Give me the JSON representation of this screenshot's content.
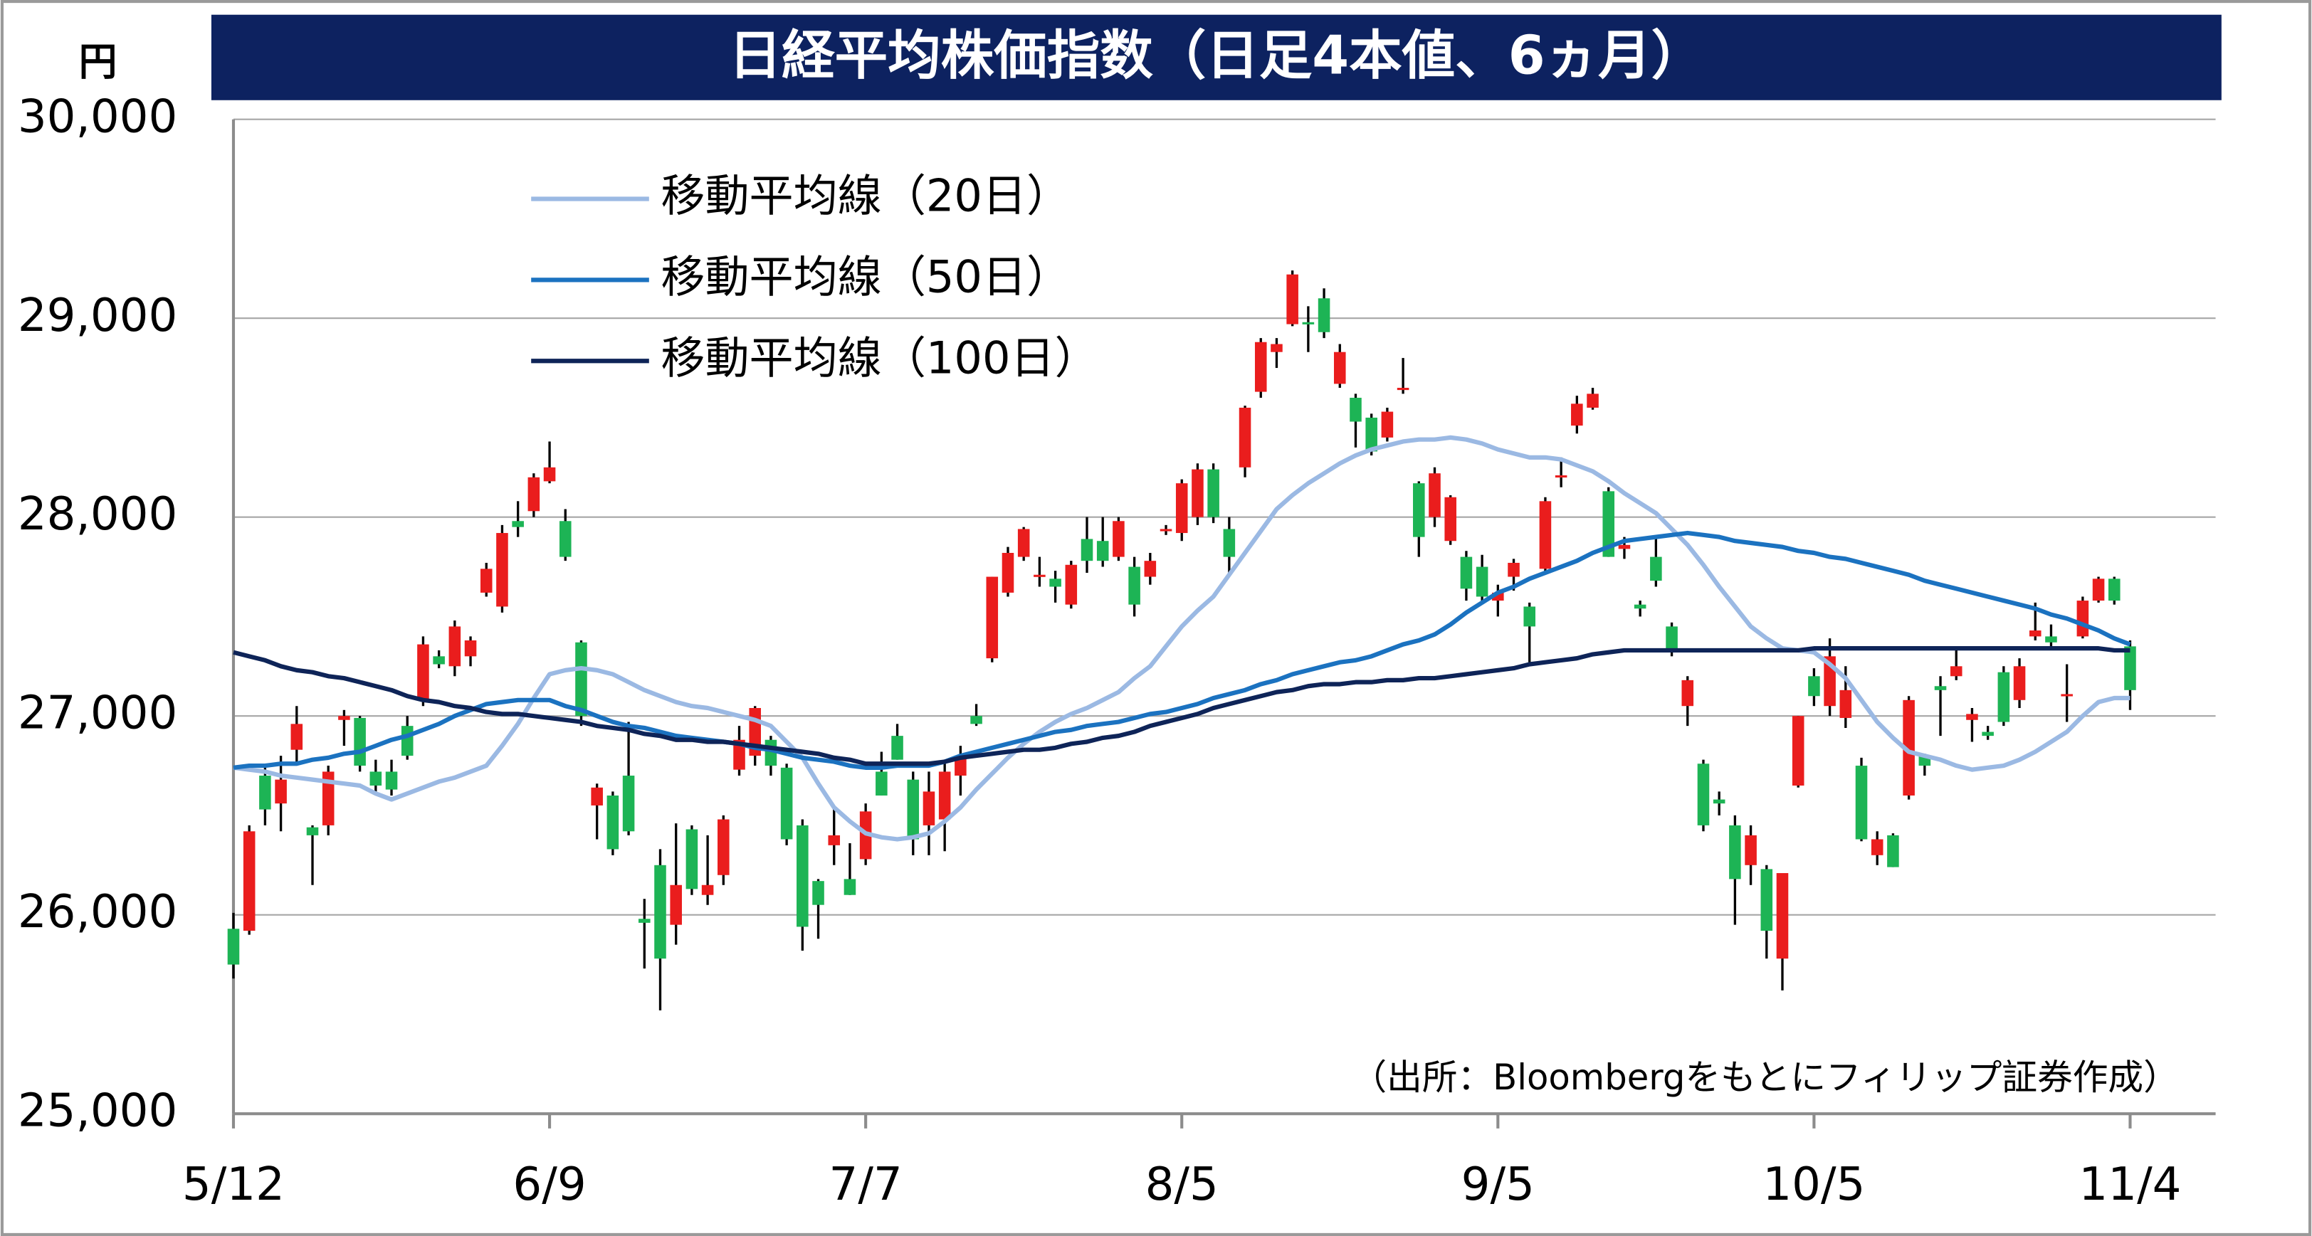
{
  "chart_data": {
    "type": "candlestick",
    "title": "日経平均株価指数（日足4本値、6ヵ月）",
    "y_unit": "円",
    "note": "（出所：Bloombergをもとにフィリップ証券作成）",
    "categories": [
      "5/12",
      null,
      null,
      null,
      null,
      null,
      null,
      null,
      null,
      null,
      null,
      null,
      null,
      null,
      null,
      null,
      null,
      null,
      null,
      null,
      "6/9",
      null,
      null,
      null,
      null,
      null,
      null,
      null,
      null,
      null,
      null,
      null,
      null,
      null,
      null,
      null,
      null,
      null,
      null,
      null,
      "7/7",
      null,
      null,
      null,
      null,
      null,
      null,
      null,
      null,
      null,
      null,
      null,
      null,
      null,
      null,
      null,
      null,
      null,
      null,
      null,
      "8/5",
      null,
      null,
      null,
      null,
      null,
      null,
      null,
      null,
      null,
      null,
      null,
      null,
      null,
      null,
      null,
      null,
      null,
      null,
      null,
      "9/5",
      null,
      null,
      null,
      null,
      null,
      null,
      null,
      null,
      null,
      null,
      null,
      null,
      null,
      null,
      null,
      null,
      null,
      null,
      null,
      "10/5",
      null,
      null,
      null,
      null,
      null,
      null,
      null,
      null,
      null,
      null,
      null,
      null,
      null,
      null,
      null,
      null,
      null,
      null,
      null,
      "11/4"
    ],
    "open": [
      25930,
      25920,
      26700,
      26560,
      26830,
      26440,
      26450,
      26980,
      26990,
      26720,
      26720,
      26950,
      27080,
      27300,
      27250,
      27300,
      27620,
      27550,
      27980,
      28030,
      28180,
      27980,
      27370,
      26550,
      26600,
      26700,
      25980,
      26250,
      25950,
      26430,
      26100,
      26200,
      26730,
      26800,
      26880,
      26740,
      26450,
      26170,
      26350,
      26180,
      26280,
      26720,
      26900,
      26680,
      26450,
      26480,
      26700,
      27000,
      27290,
      27620,
      27800,
      27700,
      27690,
      27560,
      27890,
      27880,
      27800,
      27750,
      27700,
      27930,
      27920,
      28000,
      28240,
      27940,
      28250,
      28630,
      28830,
      28970,
      28980,
      29100,
      28670,
      28600,
      28500,
      28400,
      28640,
      28170,
      28000,
      27880,
      27800,
      27750,
      27580,
      27700,
      27550,
      27740,
      28200,
      28460,
      28550,
      28130,
      27840,
      27560,
      27800,
      27450,
      27050,
      26760,
      26580,
      26450,
      26250,
      26230,
      25780,
      26650,
      27200,
      27050,
      26990,
      26750,
      26300,
      26400,
      26600,
      26800,
      27150,
      27200,
      26980,
      26920,
      27220,
      27080,
      27400,
      27400,
      27100,
      27400,
      27580,
      27690,
      27350
    ],
    "high": [
      26010,
      26450,
      26750,
      26800,
      27050,
      26450,
      26750,
      27030,
      27000,
      26780,
      26780,
      27000,
      27400,
      27330,
      27480,
      27400,
      27770,
      27960,
      28080,
      28220,
      28380,
      28040,
      27380,
      26660,
      26620,
      26970,
      26080,
      26330,
      26460,
      26450,
      26400,
      26500,
      26950,
      27050,
      26900,
      26760,
      26480,
      26180,
      26530,
      26360,
      26560,
      26820,
      26960,
      26720,
      26720,
      26760,
      26850,
      27060,
      27700,
      27850,
      27950,
      27800,
      27730,
      27780,
      28000,
      28000,
      28000,
      27800,
      27820,
      27960,
      28190,
      28270,
      28270,
      28000,
      28560,
      28900,
      28900,
      29240,
      29060,
      29150,
      28870,
      28620,
      28520,
      28550,
      28800,
      28180,
      28250,
      28110,
      27830,
      27810,
      27660,
      27790,
      27570,
      28100,
      28300,
      28610,
      28650,
      28150,
      27900,
      27580,
      27900,
      27470,
      27200,
      26780,
      26620,
      26500,
      26450,
      26250,
      26200,
      27000,
      27240,
      27390,
      27250,
      26790,
      26420,
      26410,
      27100,
      26810,
      27200,
      27350,
      27040,
      26950,
      27250,
      27290,
      27570,
      27460,
      27260,
      27600,
      27700,
      27700,
      27380
    ],
    "low": [
      25680,
      25900,
      26450,
      26420,
      26750,
      26150,
      26400,
      26850,
      26720,
      26620,
      26600,
      26780,
      27050,
      27240,
      27200,
      27250,
      27600,
      27520,
      27900,
      28000,
      28170,
      27780,
      26950,
      26380,
      26300,
      26400,
      25730,
      25520,
      25850,
      26100,
      26050,
      26150,
      26700,
      26750,
      26700,
      26350,
      25820,
      25880,
      26250,
      26100,
      26250,
      26600,
      26780,
      26300,
      26300,
      26320,
      26600,
      26950,
      27270,
      27600,
      27780,
      27650,
      27570,
      27540,
      27720,
      27750,
      27780,
      27500,
      27660,
      27910,
      27880,
      27960,
      27970,
      27720,
      28200,
      28600,
      28750,
      28960,
      28830,
      28900,
      28650,
      28350,
      28310,
      28380,
      28620,
      27800,
      27950,
      27860,
      27580,
      27570,
      27500,
      27630,
      27270,
      27720,
      28150,
      28420,
      28540,
      27800,
      27790,
      27500,
      27650,
      27300,
      26950,
      26420,
      26500,
      25950,
      26150,
      25780,
      25620,
      26640,
      27050,
      27000,
      26940,
      26370,
      26250,
      26240,
      26580,
      26700,
      26900,
      27180,
      26870,
      26880,
      26950,
      27040,
      27380,
      27350,
      26970,
      27390,
      27570,
      27560,
      27030
    ],
    "close": [
      25750,
      26420,
      26530,
      26680,
      26960,
      26400,
      26720,
      27000,
      26750,
      26650,
      26630,
      26800,
      27360,
      27260,
      27450,
      27380,
      27740,
      27920,
      27950,
      28200,
      28250,
      27800,
      27000,
      26640,
      26330,
      26420,
      25960,
      25780,
      26150,
      26130,
      26150,
      26480,
      26880,
      27040,
      26750,
      26380,
      25940,
      26050,
      26400,
      26100,
      26520,
      26600,
      26780,
      26380,
      26620,
      26720,
      26800,
      26960,
      27700,
      27820,
      27940,
      27710,
      27650,
      27760,
      27780,
      27780,
      27980,
      27560,
      27780,
      27940,
      28170,
      28240,
      28000,
      27800,
      28550,
      28880,
      28870,
      29220,
      28970,
      28930,
      28830,
      28480,
      28330,
      28530,
      28650,
      27900,
      28220,
      28100,
      27640,
      27600,
      27620,
      27770,
      27450,
      28080,
      28210,
      28570,
      28620,
      27800,
      27860,
      27540,
      27680,
      27340,
      27180,
      26450,
      26560,
      26180,
      26400,
      25920,
      26210,
      27000,
      27100,
      27300,
      27130,
      26380,
      26380,
      26240,
      27080,
      26750,
      27130,
      27250,
      27010,
      26900,
      26970,
      27250,
      27430,
      27370,
      27110,
      27580,
      27690,
      27580,
      27130
    ],
    "up_color": "#ea1d1d",
    "down_color": "#1db455",
    "series": [
      {
        "name": "移動平均線（20日）",
        "color": "#9bb9e3",
        "values": [
          26740,
          26730,
          26720,
          26700,
          26690,
          26680,
          26670,
          26660,
          26650,
          26610,
          26580,
          26610,
          26640,
          26670,
          26690,
          26720,
          26750,
          26850,
          26960,
          27090,
          27210,
          27230,
          27240,
          27230,
          27210,
          27170,
          27130,
          27100,
          27070,
          27050,
          27040,
          27020,
          27000,
          26980,
          26950,
          26870,
          26790,
          26660,
          26540,
          26470,
          26410,
          26390,
          26380,
          26390,
          26410,
          26470,
          26540,
          26630,
          26710,
          26790,
          26860,
          26920,
          26970,
          27010,
          27040,
          27080,
          27120,
          27190,
          27250,
          27350,
          27450,
          27530,
          27600,
          27710,
          27820,
          27930,
          28040,
          28110,
          28170,
          28220,
          28270,
          28310,
          28340,
          28360,
          28380,
          28390,
          28390,
          28400,
          28390,
          28370,
          28340,
          28320,
          28300,
          28300,
          28290,
          28260,
          28230,
          28180,
          28120,
          28070,
          28020,
          27940,
          27860,
          27760,
          27650,
          27550,
          27450,
          27390,
          27340,
          27330,
          27320,
          27260,
          27190,
          27080,
          26970,
          26890,
          26820,
          26800,
          26780,
          26750,
          26730,
          26740,
          26750,
          26780,
          26820,
          26870,
          26920,
          27000,
          27070,
          27090,
          27090
        ]
      },
      {
        "name": "移動平均線（50日）",
        "color": "#1b72c0",
        "values": [
          26740,
          26750,
          26750,
          26760,
          26760,
          26780,
          26790,
          26810,
          26820,
          26850,
          26880,
          26900,
          26930,
          26960,
          27000,
          27030,
          27060,
          27070,
          27080,
          27080,
          27080,
          27050,
          27030,
          27000,
          26970,
          26950,
          26940,
          26920,
          26900,
          26890,
          26880,
          26870,
          26860,
          26840,
          26830,
          26810,
          26790,
          26780,
          26770,
          26750,
          26740,
          26740,
          26750,
          26750,
          26750,
          26770,
          26800,
          26820,
          26840,
          26860,
          26880,
          26900,
          26920,
          26930,
          26950,
          26960,
          26970,
          26990,
          27010,
          27020,
          27040,
          27060,
          27090,
          27110,
          27130,
          27160,
          27180,
          27210,
          27230,
          27250,
          27270,
          27280,
          27300,
          27330,
          27360,
          27380,
          27410,
          27460,
          27520,
          27570,
          27620,
          27650,
          27690,
          27720,
          27750,
          27780,
          27820,
          27850,
          27880,
          27890,
          27900,
          27910,
          27920,
          27910,
          27900,
          27880,
          27870,
          27860,
          27850,
          27830,
          27820,
          27800,
          27790,
          27770,
          27750,
          27730,
          27710,
          27680,
          27660,
          27640,
          27620,
          27600,
          27580,
          27560,
          27540,
          27510,
          27490,
          27460,
          27430,
          27390,
          27360
        ]
      },
      {
        "name": "移動平均線（100日）",
        "color": "#0e2458",
        "values": [
          27320,
          27300,
          27280,
          27250,
          27230,
          27220,
          27200,
          27190,
          27170,
          27150,
          27130,
          27100,
          27080,
          27070,
          27050,
          27040,
          27020,
          27010,
          27010,
          27000,
          26990,
          26980,
          26970,
          26950,
          26940,
          26930,
          26910,
          26900,
          26880,
          26880,
          26870,
          26870,
          26860,
          26850,
          26840,
          26830,
          26820,
          26810,
          26790,
          26780,
          26760,
          26760,
          26760,
          26760,
          26760,
          26770,
          26790,
          26800,
          26810,
          26820,
          26830,
          26830,
          26840,
          26860,
          26870,
          26890,
          26900,
          26920,
          26950,
          26970,
          26990,
          27010,
          27040,
          27060,
          27080,
          27100,
          27120,
          27130,
          27150,
          27160,
          27160,
          27170,
          27170,
          27180,
          27180,
          27190,
          27190,
          27200,
          27210,
          27220,
          27230,
          27240,
          27260,
          27270,
          27280,
          27290,
          27310,
          27320,
          27330,
          27330,
          27330,
          27330,
          27330,
          27330,
          27330,
          27330,
          27330,
          27330,
          27330,
          27330,
          27340,
          27340,
          27340,
          27340,
          27340,
          27340,
          27340,
          27340,
          27340,
          27340,
          27340,
          27340,
          27340,
          27340,
          27340,
          27340,
          27340,
          27340,
          27340,
          27330,
          27330
        ]
      }
    ],
    "ylim": [
      25000,
      30000
    ],
    "yticks": [
      {
        "value": 25000,
        "label": "25,000"
      },
      {
        "value": 26000,
        "label": "26,000"
      },
      {
        "value": 27000,
        "label": "27,000"
      },
      {
        "value": 28000,
        "label": "28,000"
      },
      {
        "value": 29000,
        "label": "29,000"
      },
      {
        "value": 30000,
        "label": "30,000"
      }
    ],
    "grid": true,
    "legend": "top-left",
    "title_color": "#0d2260"
  }
}
